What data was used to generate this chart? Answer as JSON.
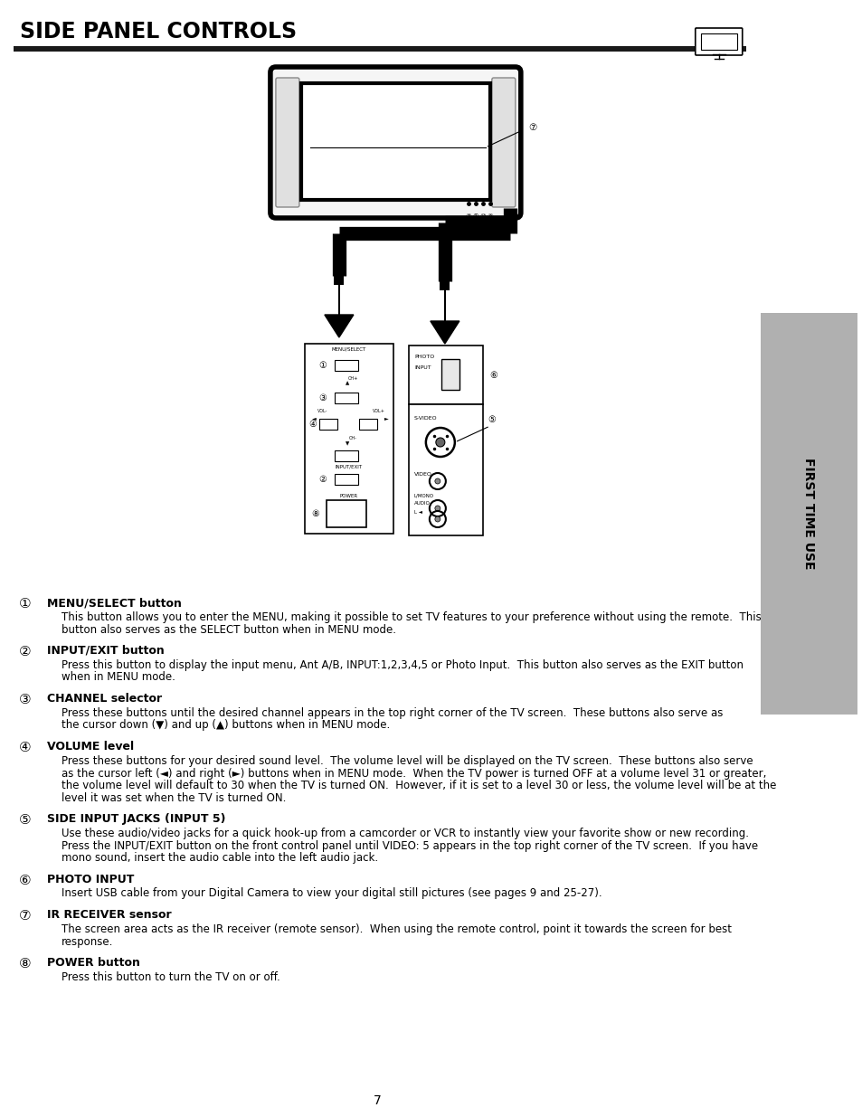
{
  "title": "SIDE PANEL CONTROLS",
  "page_number": "7",
  "sidebar_text": "FIRST TIME USE",
  "background_color": "#ffffff",
  "sidebar_color": "#b0b0b0",
  "items": [
    {
      "num": "①",
      "heading": "MENU/SELECT button",
      "body": [
        "This button allows you to enter the MENU, making it possible to set TV features to your preference without using the remote.  This",
        "button also serves as the SELECT button when in MENU mode."
      ]
    },
    {
      "num": "②",
      "heading": "INPUT/EXIT button",
      "body": [
        "Press this button to display the input menu, Ant A/B, INPUT:1,2,3,4,5 or Photo Input.  This button also serves as the EXIT button",
        "when in MENU mode."
      ]
    },
    {
      "num": "③",
      "heading": "CHANNEL selector",
      "body": [
        "Press these buttons until the desired channel appears in the top right corner of the TV screen.  These buttons also serve as",
        "the cursor down (▼) and up (▲) buttons when in MENU mode."
      ]
    },
    {
      "num": "④",
      "heading": "VOLUME level",
      "body": [
        "Press these buttons for your desired sound level.  The volume level will be displayed on the TV screen.  These buttons also serve",
        "as the cursor left (◄) and right (►) buttons when in MENU mode.  When the TV power is turned OFF at a volume level 31 or greater,",
        "the volume level will default to 30 when the TV is turned ON.  However, if it is set to a level 30 or less, the volume level will be at the",
        "level it was set when the TV is turned ON."
      ]
    },
    {
      "num": "⑤",
      "heading": "SIDE INPUT JACKS (INPUT 5)",
      "body": [
        "Use these audio/video jacks for a quick hook-up from a camcorder or VCR to instantly view your favorite show or new recording.",
        "Press the INPUT/EXIT button on the front control panel until VIDEO: 5 appears in the top right corner of the TV screen.  If you have",
        "mono sound, insert the audio cable into the left audio jack."
      ]
    },
    {
      "num": "⑥",
      "heading": "PHOTO INPUT",
      "body": [
        "Insert USB cable from your Digital Camera to view your digital still pictures (see pages 9 and 25-27)."
      ]
    },
    {
      "num": "⑦",
      "heading": "IR RECEIVER sensor",
      "body": [
        "The screen area acts as the IR receiver (remote sensor).  When using the remote control, point it towards the screen for best",
        "response."
      ]
    },
    {
      "num": "⑧",
      "heading": "POWER button",
      "body": [
        "Press this button to turn the TV on or off."
      ]
    }
  ]
}
